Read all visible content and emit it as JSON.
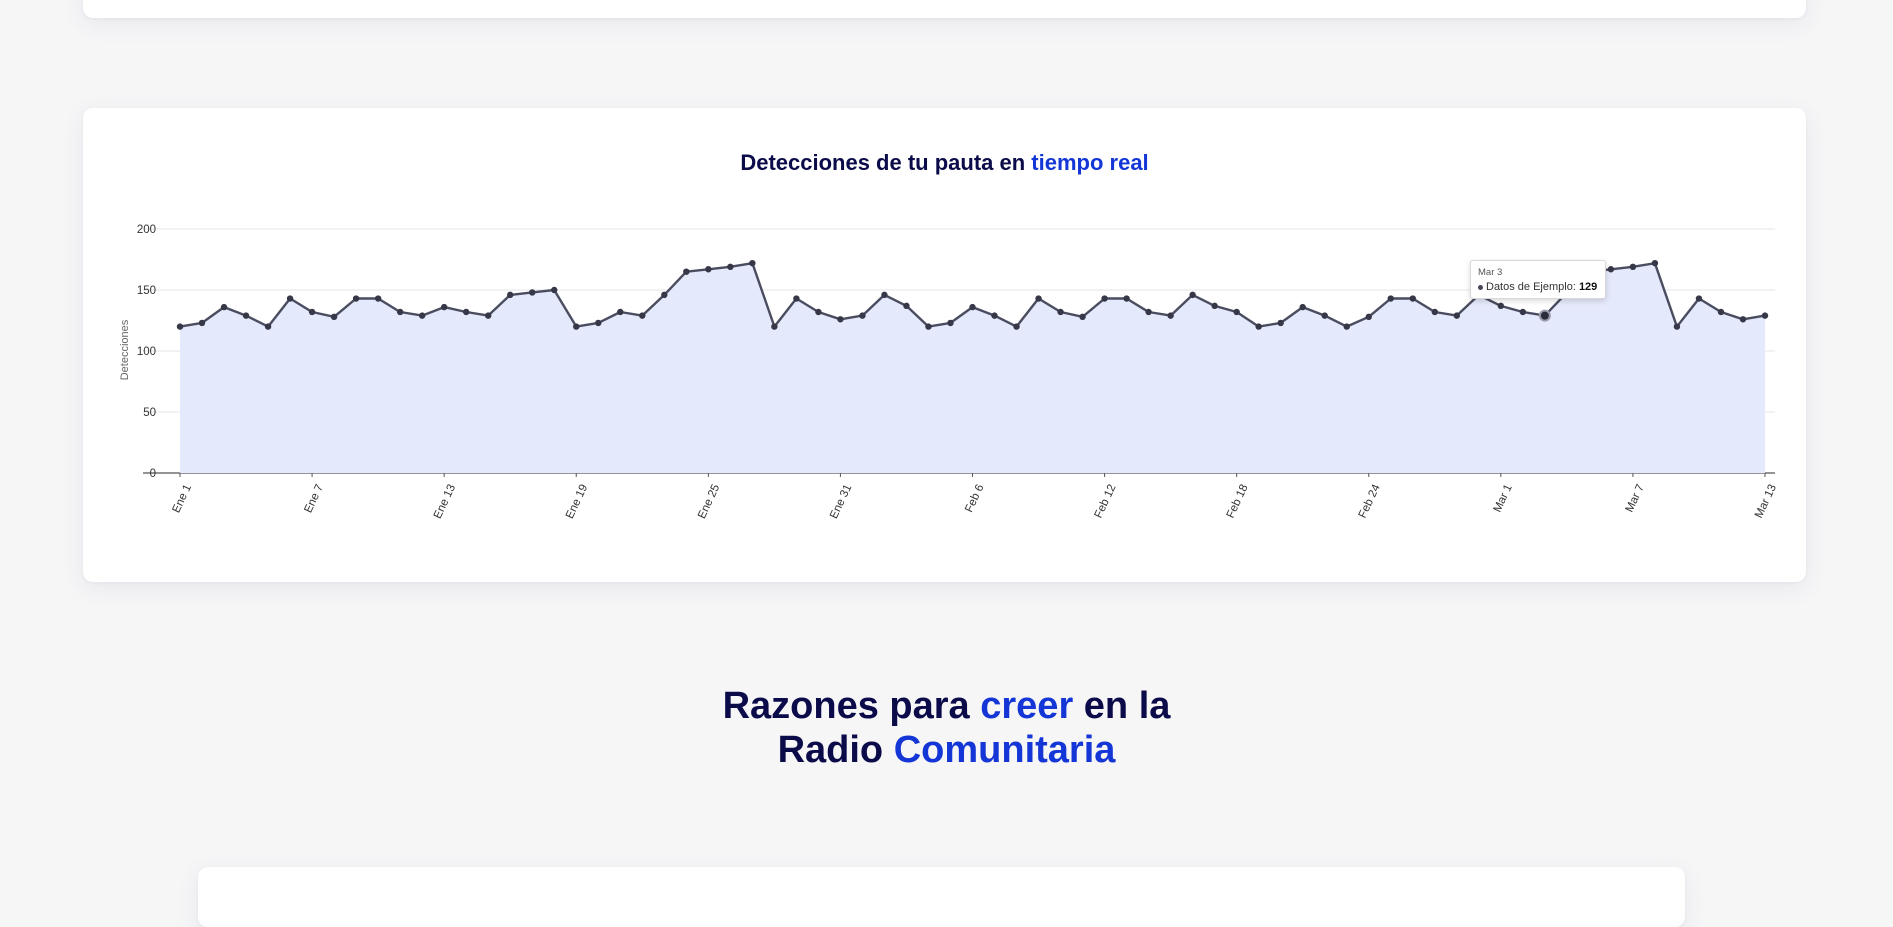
{
  "chart_title": {
    "part1": "Detecciones de tu pauta en ",
    "part2": "tiempo real"
  },
  "section_heading": {
    "line1_a": "Razones para ",
    "line1_b": "creer",
    "line1_c": " en la",
    "line2_a": "Radio ",
    "line2_b": "Comunitaria"
  },
  "tooltip": {
    "date": "Mar 3",
    "series": "Datos de Ejemplo: ",
    "value": "129"
  },
  "colors": {
    "title_dark": "#0b0b4a",
    "accent": "#1436d6",
    "line": "#4a4c60",
    "area": "#e4e9fb"
  },
  "chart_data": {
    "type": "area",
    "ylabel": "Detecciones",
    "xlabel": "",
    "ylim": [
      0,
      200
    ],
    "yticks": [
      0,
      50,
      100,
      150,
      200
    ],
    "xticks": [
      "Ene 1",
      "Ene 7",
      "Ene 13",
      "Ene 19",
      "Ene 25",
      "Ene 31",
      "Feb 6",
      "Feb 12",
      "Feb 18",
      "Feb 24",
      "Mar 1",
      "Mar 7",
      "Mar 13"
    ],
    "grid": true,
    "x": [
      "Ene 1",
      "Ene 2",
      "Ene 3",
      "Ene 4",
      "Ene 5",
      "Ene 6",
      "Ene 7",
      "Ene 8",
      "Ene 9",
      "Ene 10",
      "Ene 11",
      "Ene 12",
      "Ene 13",
      "Ene 14",
      "Ene 15",
      "Ene 16",
      "Ene 17",
      "Ene 18",
      "Ene 19",
      "Ene 20",
      "Ene 21",
      "Ene 22",
      "Ene 23",
      "Ene 24",
      "Ene 25",
      "Ene 26",
      "Ene 27",
      "Ene 28",
      "Ene 29",
      "Ene 30",
      "Ene 31",
      "Feb 1",
      "Feb 2",
      "Feb 3",
      "Feb 4",
      "Feb 5",
      "Feb 6",
      "Feb 7",
      "Feb 8",
      "Feb 9",
      "Feb 10",
      "Feb 11",
      "Feb 12",
      "Feb 13",
      "Feb 14",
      "Feb 15",
      "Feb 16",
      "Feb 17",
      "Feb 18",
      "Feb 19",
      "Feb 20",
      "Feb 21",
      "Feb 22",
      "Feb 23",
      "Feb 24",
      "Feb 25",
      "Feb 26",
      "Feb 27",
      "Feb 28",
      "Feb 29",
      "Mar 1",
      "Mar 2",
      "Mar 3",
      "Mar 4",
      "Mar 5",
      "Mar 6",
      "Mar 7",
      "Mar 8",
      "Mar 9",
      "Mar 10",
      "Mar 11",
      "Mar 12",
      "Mar 13"
    ],
    "series": [
      {
        "name": "Datos de Ejemplo",
        "values": [
          120,
          123,
          136,
          129,
          120,
          143,
          132,
          128,
          143,
          143,
          132,
          129,
          136,
          132,
          129,
          146,
          148,
          150,
          120,
          123,
          132,
          129,
          146,
          165,
          167,
          169,
          172,
          120,
          143,
          132,
          126,
          129,
          146,
          137,
          120,
          123,
          136,
          129,
          120,
          143,
          132,
          128,
          143,
          143,
          132,
          129,
          146,
          137,
          132,
          120,
          123,
          136,
          129,
          120,
          128,
          143,
          143,
          132,
          129,
          146,
          137,
          132,
          129,
          148,
          165,
          167,
          169,
          172,
          120,
          143,
          132,
          126,
          129
        ]
      }
    ]
  }
}
